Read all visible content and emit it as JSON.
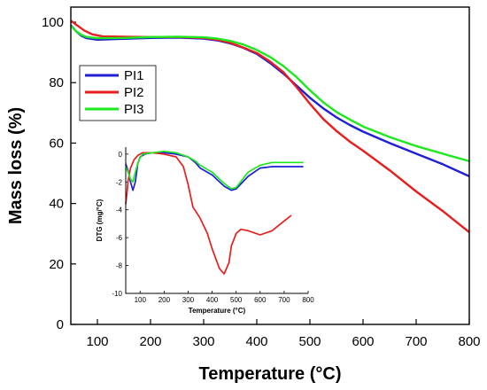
{
  "chart_data": [
    {
      "type": "line",
      "xlabel": "Temperature (°C)",
      "ylabel": "Mass loss (%)",
      "xlim": [
        50,
        800
      ],
      "ylim": [
        0,
        105
      ],
      "xticks": [
        100,
        200,
        300,
        400,
        500,
        600,
        700,
        800
      ],
      "yticks": [
        0,
        20,
        40,
        60,
        80,
        100
      ],
      "legend_position": "upper-left",
      "series": [
        {
          "name": "PI1",
          "color": "#1f1fd6",
          "x": [
            50,
            60,
            70,
            80,
            100,
            150,
            200,
            250,
            300,
            325,
            350,
            375,
            400,
            425,
            450,
            475,
            500,
            525,
            550,
            575,
            600,
            650,
            700,
            750,
            800
          ],
          "y": [
            99,
            97,
            95.5,
            94.7,
            94.2,
            94.5,
            94.8,
            94.9,
            94.6,
            94,
            93,
            91.5,
            89.5,
            86.5,
            83,
            79,
            75,
            71.5,
            68.5,
            66,
            63.8,
            60,
            56.5,
            53,
            49
          ]
        },
        {
          "name": "PI2",
          "color": "#e81e1e",
          "x": [
            50,
            60,
            75,
            90,
            110,
            150,
            200,
            250,
            300,
            325,
            350,
            375,
            400,
            425,
            450,
            475,
            500,
            525,
            550,
            575,
            600,
            650,
            700,
            750,
            800
          ],
          "y": [
            100.5,
            99.2,
            97.3,
            96,
            95.3,
            95.2,
            95.1,
            95.1,
            94.8,
            94.2,
            93.2,
            91.6,
            89.8,
            87,
            83.5,
            78.5,
            73,
            68,
            64,
            60.5,
            57.5,
            51,
            44,
            37.5,
            30.5
          ]
        },
        {
          "name": "PI3",
          "color": "#1ee81e",
          "x": [
            50,
            60,
            70,
            80,
            100,
            150,
            200,
            250,
            300,
            325,
            350,
            375,
            400,
            425,
            450,
            475,
            500,
            525,
            550,
            575,
            600,
            650,
            700,
            750,
            800
          ],
          "y": [
            98.8,
            97,
            95.8,
            95.1,
            94.7,
            94.8,
            95.1,
            95.2,
            95,
            94.6,
            93.8,
            92.6,
            90.8,
            88.5,
            85.5,
            81.8,
            77.5,
            73.5,
            70.3,
            67.8,
            65.5,
            62,
            59,
            56.5,
            54
          ]
        }
      ]
    },
    {
      "type": "line",
      "xlabel": "Temperature (°C)",
      "ylabel": "DTG (mg/°C)",
      "xlim": [
        40,
        800
      ],
      "ylim": [
        -10,
        0.5
      ],
      "xticks": [
        100,
        200,
        300,
        400,
        500,
        600,
        700,
        800
      ],
      "yticks": [
        0,
        -2,
        -4,
        -6,
        -8,
        -10
      ],
      "series": [
        {
          "name": "PI1",
          "color": "#1f1fd6",
          "x": [
            40,
            50,
            60,
            70,
            80,
            90,
            100,
            120,
            150,
            200,
            250,
            300,
            330,
            350,
            400,
            450,
            480,
            500,
            550,
            600,
            650,
            700,
            780
          ],
          "y": [
            -0.7,
            -1.2,
            -2.0,
            -2.6,
            -2.0,
            -0.7,
            -0.2,
            0.0,
            0.1,
            0.1,
            0.0,
            -0.2,
            -0.6,
            -1.0,
            -1.5,
            -2.3,
            -2.6,
            -2.5,
            -1.6,
            -1.0,
            -0.9,
            -0.9,
            -0.9
          ]
        },
        {
          "name": "PI2",
          "color": "#e81e1e",
          "x": [
            40,
            45,
            50,
            60,
            75,
            90,
            110,
            150,
            200,
            250,
            280,
            300,
            320,
            350,
            380,
            400,
            430,
            450,
            470,
            480,
            500,
            520,
            550,
            600,
            650,
            700,
            730
          ],
          "y": [
            -3.6,
            -2.8,
            -1.9,
            -1.0,
            -0.4,
            -0.1,
            0.1,
            0.1,
            0.0,
            -0.2,
            -0.9,
            -2.2,
            -3.8,
            -4.6,
            -5.7,
            -6.8,
            -8.2,
            -8.6,
            -7.8,
            -6.6,
            -5.7,
            -5.4,
            -5.5,
            -5.8,
            -5.5,
            -4.8,
            -4.4
          ]
        },
        {
          "name": "PI3",
          "color": "#1ee81e",
          "x": [
            40,
            50,
            60,
            70,
            80,
            95,
            110,
            150,
            200,
            250,
            300,
            330,
            350,
            400,
            450,
            480,
            500,
            550,
            600,
            650,
            700,
            780
          ],
          "y": [
            -0.9,
            -1.3,
            -1.8,
            -2.0,
            -1.3,
            -0.4,
            0.0,
            0.1,
            0.2,
            0.1,
            -0.2,
            -0.5,
            -0.8,
            -1.3,
            -2.1,
            -2.5,
            -2.4,
            -1.3,
            -0.8,
            -0.6,
            -0.6,
            -0.6
          ]
        }
      ]
    }
  ]
}
